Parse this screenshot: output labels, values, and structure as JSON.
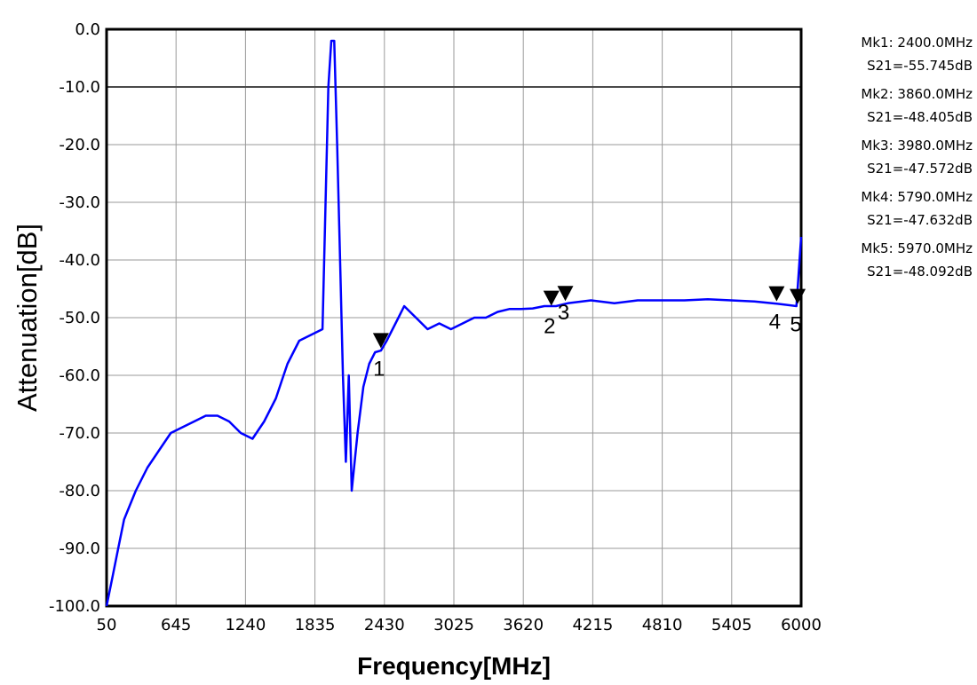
{
  "chart_data": {
    "type": "line",
    "xlabel": "Frequency[MHz]",
    "ylabel": "Attenuation[dB]",
    "xlim": [
      50,
      6000
    ],
    "ylim": [
      -100,
      0
    ],
    "grid": true,
    "x_ticks": [
      "50",
      "645",
      "1240",
      "1835",
      "2430",
      "3025",
      "3620",
      "4215",
      "4810",
      "5405",
      "6000"
    ],
    "y_ticks": [
      "0.0",
      "-10.0",
      "-20.0",
      "-30.0",
      "-40.0",
      "-50.0",
      "-60.0",
      "-70.0",
      "-80.0",
      "-90.0",
      "-100.0"
    ],
    "series_color": "#0000ff",
    "series": [
      {
        "x": [
          50,
          100,
          150,
          200,
          300,
          400,
          500,
          600,
          700,
          800,
          900,
          1000,
          1100,
          1200,
          1300,
          1400,
          1450,
          1500,
          1550,
          1600,
          1650,
          1700,
          1800,
          1900,
          1950,
          1975,
          2000,
          2025,
          2050,
          2075,
          2100,
          2125,
          2150,
          2200,
          2250,
          2300,
          2350,
          2400,
          2450,
          2500,
          2550,
          2600,
          2700,
          2800,
          2900,
          3000,
          3100,
          3200,
          3300,
          3400,
          3500,
          3600,
          3700,
          3800,
          3900,
          4000,
          4200,
          4400,
          4600,
          4800,
          5000,
          5200,
          5400,
          5600,
          5800,
          5960,
          6000
        ],
        "y": [
          -100,
          -95,
          -90,
          -85,
          -80,
          -76,
          -73,
          -70,
          -69,
          -68,
          -67,
          -67,
          -68,
          -70,
          -71,
          -68,
          -66,
          -64,
          -61,
          -58,
          -56,
          -54,
          -53,
          -52,
          -10,
          -2,
          -2,
          -20,
          -40,
          -60,
          -75,
          -60,
          -80,
          -70,
          -62,
          -58,
          -56,
          -55.7,
          -54,
          -52,
          -50,
          -48,
          -50,
          -52,
          -51,
          -52,
          -51,
          -50,
          -50,
          -49,
          -48.5,
          -48.5,
          -48.4,
          -48,
          -48,
          -47.5,
          -47,
          -47.5,
          -47,
          -47,
          -47,
          -46.8,
          -47,
          -47.2,
          -47.6,
          -48,
          -36
        ]
      }
    ],
    "markers": [
      {
        "label": "1",
        "x": 2400.0,
        "y": -55.745
      },
      {
        "label": "2",
        "x": 3860.0,
        "y": -48.405
      },
      {
        "label": "3",
        "x": 3980.0,
        "y": -47.572
      },
      {
        "label": "4",
        "x": 5790.0,
        "y": -47.632
      },
      {
        "label": "5",
        "x": 5970.0,
        "y": -48.092
      }
    ]
  },
  "readouts": [
    {
      "mk": "Mk1: 2400.0MHz",
      "s21": "S21=-55.745dB"
    },
    {
      "mk": "Mk2: 3860.0MHz",
      "s21": "S21=-48.405dB"
    },
    {
      "mk": "Mk3: 3980.0MHz",
      "s21": "S21=-47.572dB"
    },
    {
      "mk": "Mk4: 5790.0MHz",
      "s21": "S21=-47.632dB"
    },
    {
      "mk": "Mk5: 5970.0MHz",
      "s21": "S21=-48.092dB"
    }
  ]
}
